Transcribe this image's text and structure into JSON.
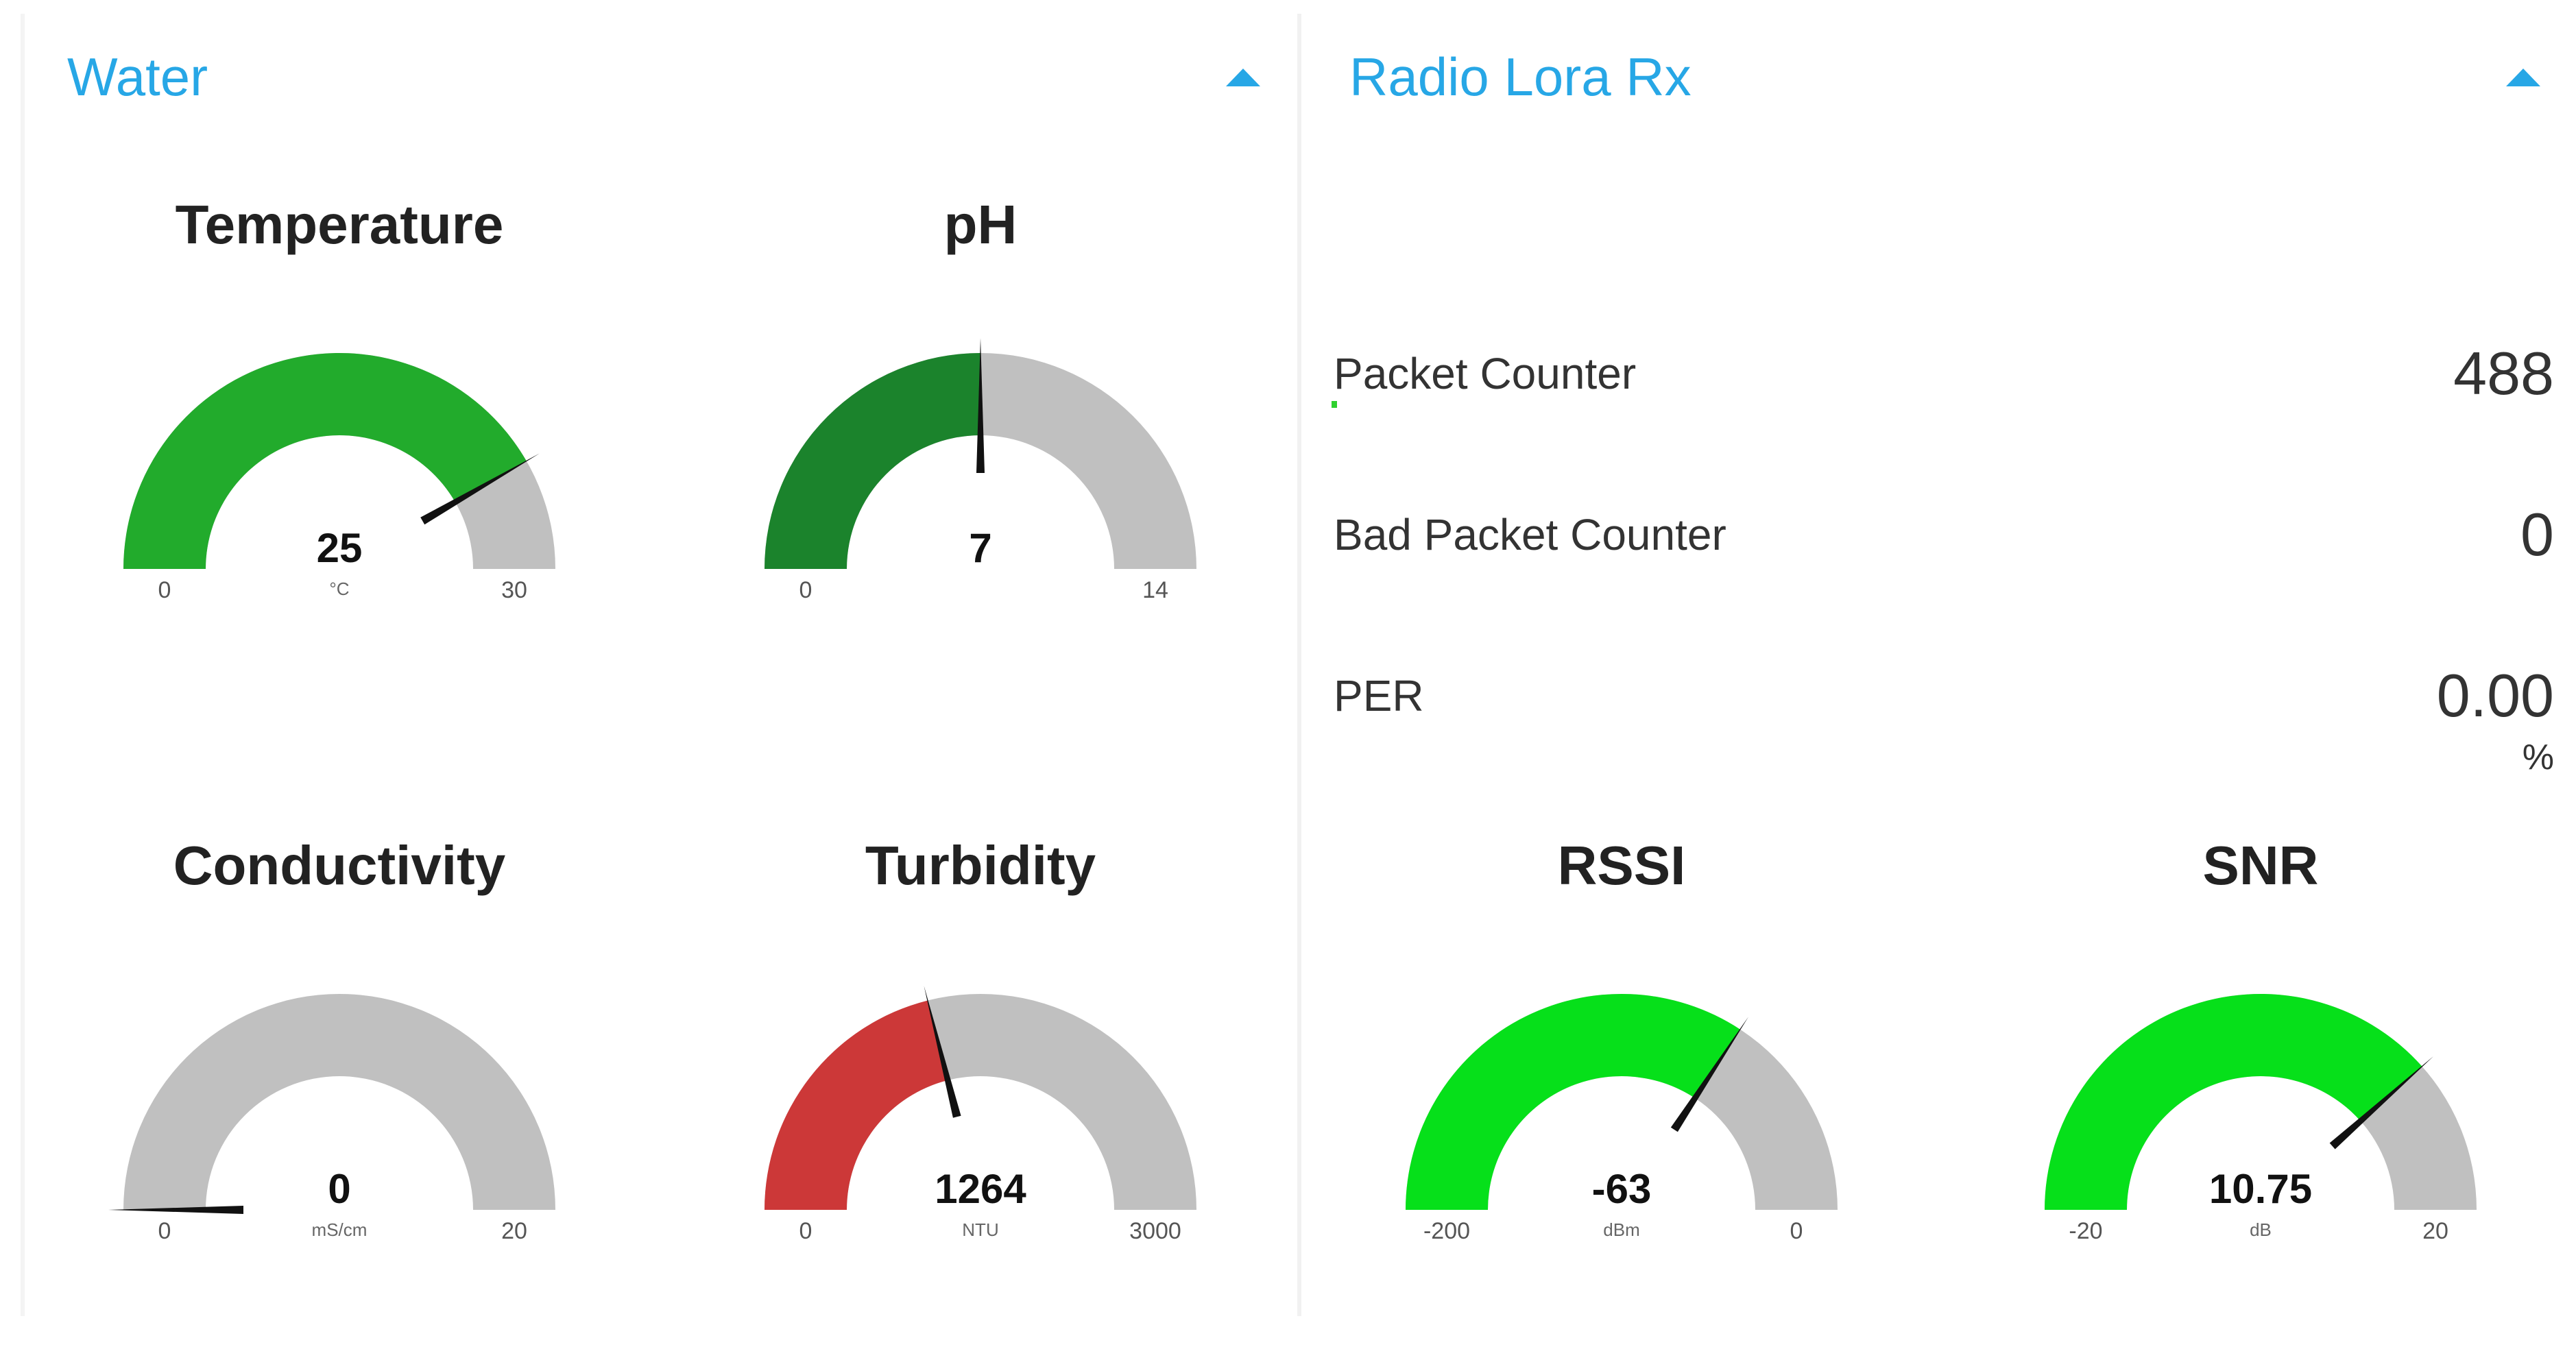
{
  "panels": {
    "water": {
      "title": "Water",
      "gauges": [
        {
          "title": "Temperature",
          "value": 25,
          "value_label": "25",
          "unit": "°C",
          "min": 0,
          "max": 30,
          "min_label": "0",
          "max_label": "30",
          "fill_color": "#22ab2c"
        },
        {
          "title": "pH",
          "value": 7,
          "value_label": "7",
          "unit": "",
          "min": 0,
          "max": 14,
          "min_label": "0",
          "max_label": "14",
          "fill_color": "#1b832c"
        },
        {
          "title": "Conductivity",
          "value": 0,
          "value_label": "0",
          "unit": "mS/cm",
          "min": 0,
          "max": 20,
          "min_label": "0",
          "max_label": "20",
          "fill_color": "#22ab2c"
        },
        {
          "title": "Turbidity",
          "value": 1264,
          "value_label": "1264",
          "unit": "NTU",
          "min": 0,
          "max": 3000,
          "min_label": "0",
          "max_label": "3000",
          "fill_color": "#cc3838"
        }
      ]
    },
    "radio": {
      "title": "Radio Lora Rx",
      "rows": [
        {
          "label": "Packet Counter",
          "value": "488",
          "unit": ""
        },
        {
          "label": "Bad Packet Counter",
          "value": "0",
          "unit": ""
        },
        {
          "label": "PER",
          "value": "0.00",
          "unit": "%"
        }
      ],
      "gauges": [
        {
          "title": "RSSI",
          "value": -63,
          "value_label": "-63",
          "unit": "dBm",
          "min": -200,
          "max": 0,
          "min_label": "-200",
          "max_label": "0",
          "fill_color": "#06e01a"
        },
        {
          "title": "SNR",
          "value": 10.75,
          "value_label": "10.75",
          "unit": "dB",
          "min": -20,
          "max": 20,
          "min_label": "-20",
          "max_label": "20",
          "fill_color": "#06e01a"
        }
      ]
    }
  },
  "icons": {
    "collapse": "chevron-up-icon"
  },
  "colors": {
    "accent": "#27a7e6",
    "track": "#c0c0c0",
    "needle": "#111111"
  }
}
